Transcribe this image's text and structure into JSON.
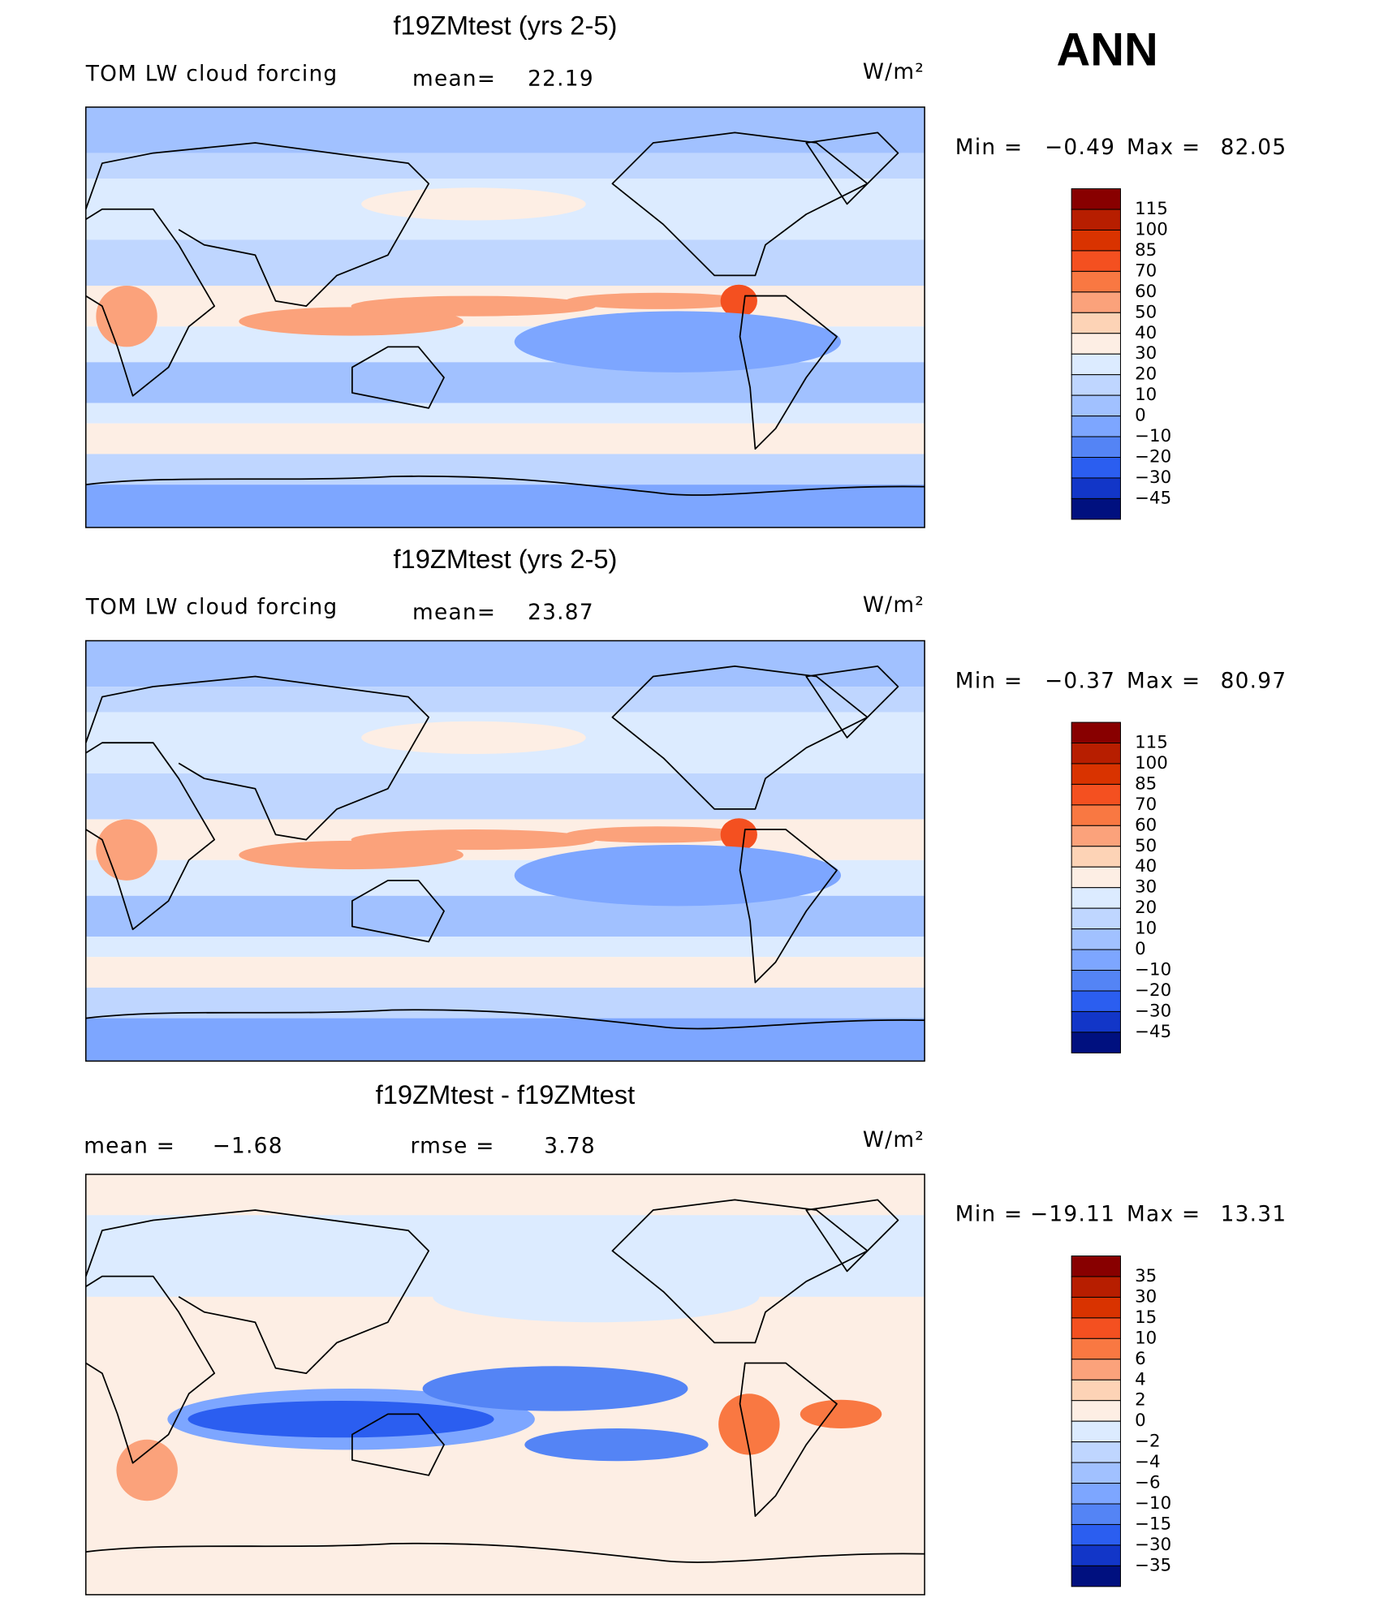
{
  "label": "ANN",
  "panels": [
    {
      "title": "f19ZMtest (yrs 2-5)",
      "variable": "TOM LW cloud forcing",
      "stats": [
        {
          "label": "mean=",
          "value": "22.19"
        }
      ],
      "units": "W/m²",
      "min_label": "Min =",
      "min": "−0.49",
      "max_label": "Max =",
      "max": "82.05",
      "colorbar": {
        "labels": [
          "115",
          "100",
          "85",
          "70",
          "60",
          "50",
          "40",
          "30",
          "20",
          "10",
          "0",
          "−10",
          "−20",
          "−30",
          "−45"
        ],
        "colors": [
          "#880000",
          "#b71e00",
          "#d93300",
          "#f45020",
          "#f97842",
          "#fba27b",
          "#fdd3b6",
          "#fdeee4",
          "#dcebff",
          "#bfd6ff",
          "#a1c1ff",
          "#7da6ff",
          "#5484f5",
          "#2b5ef0",
          "#1236c8",
          "#00107f"
        ]
      }
    },
    {
      "title": "f19ZMtest (yrs 2-5)",
      "variable": "TOM LW cloud forcing",
      "stats": [
        {
          "label": "mean=",
          "value": "23.87"
        }
      ],
      "units": "W/m²",
      "min_label": "Min =",
      "min": "−0.37",
      "max_label": "Max =",
      "max": "80.97",
      "colorbar": {
        "labels": [
          "115",
          "100",
          "85",
          "70",
          "60",
          "50",
          "40",
          "30",
          "20",
          "10",
          "0",
          "−10",
          "−20",
          "−30",
          "−45"
        ],
        "colors": [
          "#880000",
          "#b71e00",
          "#d93300",
          "#f45020",
          "#f97842",
          "#fba27b",
          "#fdd3b6",
          "#fdeee4",
          "#dcebff",
          "#bfd6ff",
          "#a1c1ff",
          "#7da6ff",
          "#5484f5",
          "#2b5ef0",
          "#1236c8",
          "#00107f"
        ]
      }
    },
    {
      "title": "f19ZMtest - f19ZMtest",
      "stats": [
        {
          "label": "mean =",
          "value": "−1.68"
        },
        {
          "label": "rmse =",
          "value": "3.78"
        }
      ],
      "units": "W/m²",
      "min_label": "Min =",
      "min": "−19.11",
      "max_label": "Max =",
      "max": "13.31",
      "colorbar": {
        "labels": [
          "35",
          "30",
          "15",
          "10",
          "6",
          "4",
          "2",
          "0",
          "−2",
          "−4",
          "−6",
          "−10",
          "−15",
          "−30",
          "−35"
        ],
        "colors": [
          "#880000",
          "#b71e00",
          "#d93300",
          "#f45020",
          "#f97842",
          "#fba27b",
          "#fdd3b6",
          "#fdeee4",
          "#dcebff",
          "#bfd6ff",
          "#a1c1ff",
          "#7da6ff",
          "#5484f5",
          "#2b5ef0",
          "#1236c8",
          "#00107f"
        ]
      }
    }
  ]
}
